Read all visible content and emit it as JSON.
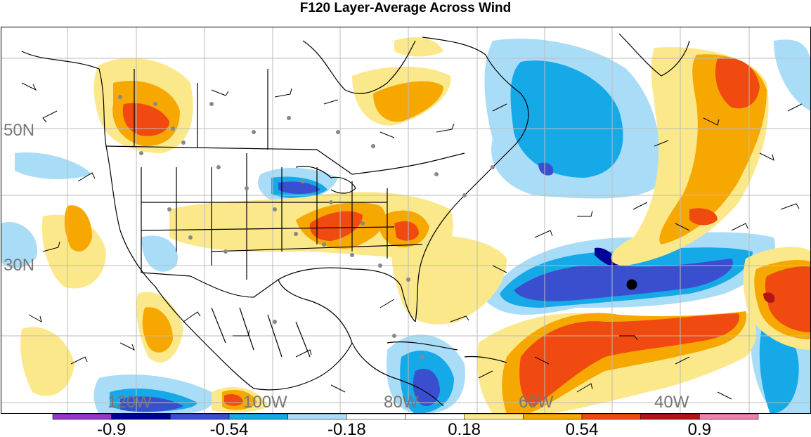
{
  "title": "F120 Layer-Average Across Wind",
  "lat_labels": [
    "50N",
    "30N"
  ],
  "lon_labels": [
    "120W",
    "100W",
    "80W",
    "60W",
    "40W"
  ],
  "colorbar": {
    "bins": [
      {
        "color": "#9933cc"
      },
      {
        "color": "#000099"
      },
      {
        "color": "#3a4fd0"
      },
      {
        "color": "#16a9e8"
      },
      {
        "color": "#a9dcf7"
      },
      {
        "color": "#ffffff"
      },
      {
        "color": "#ffffff"
      },
      {
        "color": "#fbe88a"
      },
      {
        "color": "#f6a800"
      },
      {
        "color": "#f04a10"
      },
      {
        "color": "#b31515"
      },
      {
        "color": "#f080b0"
      }
    ],
    "tick_labels": [
      "-0.9",
      "-0.54",
      "-0.18",
      "0.18",
      "0.54",
      "0.9"
    ]
  },
  "colors": {
    "neg_light": "#a9dcf7",
    "neg_mid": "#16a9e8",
    "neg_strong": "#3a4fd0",
    "neg_max": "#000099",
    "pos_light": "#fbe88a",
    "pos_mid": "#f6a800",
    "pos_strong": "#f04a10",
    "pos_max": "#b31515"
  }
}
